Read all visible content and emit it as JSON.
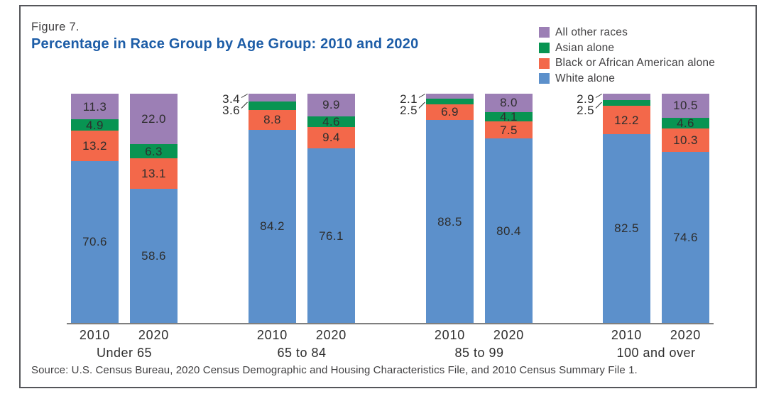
{
  "header": {
    "figure_label": "Figure 7.",
    "title": "Percentage in Race Group by Age Group: 2010 and 2020"
  },
  "footer": {
    "source": "Source: U.S. Census Bureau, 2020 Census Demographic and Housing Characteristics File, and 2010 Census Summary File 1."
  },
  "colors": {
    "title_blue": "#1D5DA7",
    "purple": "#9C7FB5",
    "green": "#089452",
    "orange": "#F3684A",
    "blue": "#5C90CB",
    "axis_gray": "#7F7F7F",
    "frame_gray": "#55565A",
    "value_text": "#2E2E2E"
  },
  "chart_data": {
    "type": "bar",
    "subtype": "stacked-100-percent",
    "title": "Percentage in Race Group by Age Group: 2010 and 2020",
    "unit": "percent",
    "ylim": [
      0,
      100
    ],
    "grid": false,
    "legend_position": "top-right",
    "stack_order_bottom_to_top": [
      "White alone",
      "Black or African American alone",
      "Asian alone",
      "All other races"
    ],
    "legend": [
      {
        "key": "other",
        "label": "All other races",
        "color": "#9C7FB5"
      },
      {
        "key": "asian",
        "label": "Asian alone",
        "color": "#089452"
      },
      {
        "key": "black",
        "label": "Black or African American alone",
        "color": "#F3684A"
      },
      {
        "key": "white",
        "label": "White alone",
        "color": "#5C90CB"
      }
    ],
    "groups": [
      {
        "label": "Under 65",
        "bars": [
          {
            "year": "2010",
            "white": "70.6",
            "black": "13.2",
            "asian": "4.9",
            "other": "11.3",
            "top_labels_outside": false
          },
          {
            "year": "2020",
            "white": "58.6",
            "black": "13.1",
            "asian": "6.3",
            "other": "22.0",
            "top_labels_outside": false
          }
        ]
      },
      {
        "label": "65 to 84",
        "bars": [
          {
            "year": "2010",
            "white": "84.2",
            "black": "8.8",
            "asian": "3.6",
            "other": "3.4",
            "top_labels_outside": true
          },
          {
            "year": "2020",
            "white": "76.1",
            "black": "9.4",
            "asian": "4.6",
            "other": "9.9",
            "top_labels_outside": false
          }
        ]
      },
      {
        "label": "85 to 99",
        "bars": [
          {
            "year": "2010",
            "white": "88.5",
            "black": "6.9",
            "asian": "2.5",
            "other": "2.1",
            "top_labels_outside": true
          },
          {
            "year": "2020",
            "white": "80.4",
            "black": "7.5",
            "asian": "4.1",
            "other": "8.0",
            "top_labels_outside": false
          }
        ]
      },
      {
        "label": "100 and over",
        "bars": [
          {
            "year": "2010",
            "white": "82.5",
            "black": "12.2",
            "asian": "2.5",
            "other": "2.9",
            "top_labels_outside": true
          },
          {
            "year": "2020",
            "white": "74.6",
            "black": "10.3",
            "asian": "4.6",
            "other": "10.5",
            "top_labels_outside": false
          }
        ]
      }
    ]
  }
}
